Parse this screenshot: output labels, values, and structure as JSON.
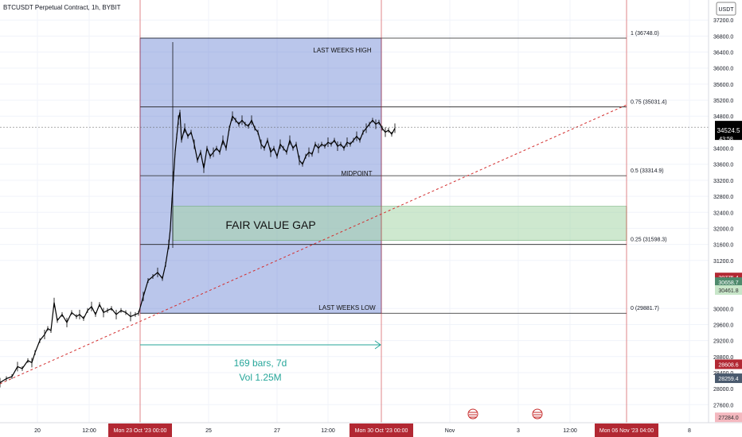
{
  "header": {
    "symbol_title": "BTCUSDT Perpetual Contract, 1h, BYBIT",
    "currency": "USDT"
  },
  "chart_data": {
    "type": "line",
    "title": "BTCUSDT Perpetual Contract, 1h, BYBIT",
    "y_axis": {
      "min": 27150,
      "max": 37700,
      "ticks": [
        37200,
        36800,
        36400,
        36000,
        35600,
        35200,
        34800,
        34000,
        33600,
        33200,
        32800,
        32400,
        32000,
        31600,
        31200,
        30000,
        29600,
        29200,
        28800,
        28400,
        28000,
        27600
      ],
      "tick_labels": [
        "37200.0",
        "36800.0",
        "36400.0",
        "36000.0",
        "35600.0",
        "35200.0",
        "34800.0",
        "34000.0",
        "33600.0",
        "33200.0",
        "32800.0",
        "32400.0",
        "32000.0",
        "31600.0",
        "31200.0",
        "30000.0",
        "29600.0",
        "29200.0",
        "28800.0",
        "28400.0",
        "28000.0",
        "27600.0"
      ]
    },
    "x_axis": {
      "ticks": [
        {
          "label": "20",
          "highlight": false
        },
        {
          "label": "12:00",
          "highlight": false
        },
        {
          "label": "Mon 23 Oct '23   00:00",
          "highlight": true
        },
        {
          "label": "25",
          "highlight": false
        },
        {
          "label": "27",
          "highlight": false
        },
        {
          "label": "12:00",
          "highlight": false
        },
        {
          "label": "Mon 30 Oct '23   00:00",
          "highlight": true
        },
        {
          "label": "Nov",
          "highlight": false
        },
        {
          "label": "3",
          "highlight": false
        },
        {
          "label": "12:00",
          "highlight": false
        },
        {
          "label": "Mon 06 Nov '23   04:00",
          "highlight": true
        },
        {
          "label": "8",
          "highlight": false
        }
      ]
    },
    "current_price": {
      "value": 34524.5,
      "label": "34524.5",
      "countdown": "43:58",
      "color": "#000000"
    },
    "price_badges": [
      {
        "value": 30775.4,
        "label": "30775.4",
        "color": "#b22833"
      },
      {
        "value": 30658.7,
        "label": "30658.7",
        "color": "#4e8a6c"
      },
      {
        "value": 30461.8,
        "label": "30461.8",
        "color": "#c8e6c9"
      },
      {
        "value": 28608.6,
        "label": "28608.6",
        "color": "#b22833"
      },
      {
        "value": 28259.4,
        "label": "28259.4",
        "color": "#4a5a6e"
      },
      {
        "value": 27284.0,
        "label": "27284.0",
        "color": "#f4b8bf"
      }
    ],
    "fib_levels": [
      {
        "ratio_label": "1",
        "value": 36748.0,
        "label": "(36748.0)"
      },
      {
        "ratio_label": "0.75",
        "value": 35031.4,
        "label": "(35031.4)"
      },
      {
        "ratio_label": "0.5",
        "value": 33314.9,
        "label": "(33314.9)"
      },
      {
        "ratio_label": "0.25",
        "value": 31598.3,
        "label": "(31598.3)"
      },
      {
        "ratio_label": "0",
        "value": 29881.7,
        "label": "(29881.7)"
      }
    ],
    "annotations": {
      "weekly_high": "LAST WEEKS HIGH",
      "midpoint": "MIDPOINT",
      "weekly_low": "LAST WEEKS LOW",
      "fvg": "FAIR VALUE GAP",
      "fvg_range": [
        31700,
        32550
      ],
      "measure_bars": "169 bars, 7d",
      "measure_vol": "Vol 1.25M"
    },
    "colors": {
      "box": "#5b78cf",
      "fvg": "#a5d6a7",
      "trendline": "#d32f2f",
      "measure": "#26a69a",
      "session": "#d32f2f",
      "candles": "#000000"
    },
    "series": [
      {
        "points": [
          [
            0,
            28150
          ],
          [
            8,
            28250
          ],
          [
            15,
            28300
          ],
          [
            22,
            28550
          ],
          [
            28,
            28500
          ],
          [
            35,
            28700
          ],
          [
            40,
            28650
          ],
          [
            44,
            28900
          ],
          [
            50,
            29200
          ],
          [
            56,
            29350
          ],
          [
            60,
            29500
          ],
          [
            64,
            29450
          ],
          [
            68,
            30150
          ],
          [
            72,
            29700
          ],
          [
            78,
            29850
          ],
          [
            84,
            29650
          ],
          [
            90,
            29900
          ],
          [
            96,
            29800
          ],
          [
            100,
            29850
          ],
          [
            105,
            29750
          ],
          [
            110,
            29950
          ],
          [
            115,
            30050
          ],
          [
            120,
            29850
          ],
          [
            125,
            30100
          ],
          [
            130,
            29900
          ],
          [
            135,
            29950
          ],
          [
            140,
            30000
          ],
          [
            146,
            29850
          ],
          [
            152,
            29950
          ],
          [
            158,
            29900
          ],
          [
            164,
            29800
          ],
          [
            170,
            29850
          ],
          [
            174,
            29880
          ],
          [
            180,
            30300
          ],
          [
            186,
            30700
          ],
          [
            192,
            30800
          ],
          [
            198,
            30900
          ],
          [
            204,
            30750
          ],
          [
            208,
            31100
          ],
          [
            212,
            31600
          ],
          [
            214,
            32000
          ],
          [
            216,
            32700
          ],
          [
            218,
            33300
          ],
          [
            220,
            33900
          ],
          [
            222,
            34300
          ],
          [
            224,
            34700
          ],
          [
            226,
            34900
          ],
          [
            228,
            34200
          ],
          [
            232,
            34500
          ],
          [
            236,
            34300
          ],
          [
            240,
            34400
          ],
          [
            244,
            34100
          ],
          [
            248,
            33700
          ],
          [
            252,
            33900
          ],
          [
            256,
            33500
          ],
          [
            260,
            34000
          ],
          [
            264,
            33800
          ],
          [
            268,
            33900
          ],
          [
            272,
            34000
          ],
          [
            276,
            33900
          ],
          [
            280,
            34200
          ],
          [
            284,
            34000
          ],
          [
            288,
            34500
          ],
          [
            292,
            34800
          ],
          [
            296,
            34700
          ],
          [
            300,
            34600
          ],
          [
            304,
            34700
          ],
          [
            308,
            34600
          ],
          [
            312,
            34550
          ],
          [
            316,
            34700
          ],
          [
            320,
            34500
          ],
          [
            324,
            34400
          ],
          [
            328,
            34100
          ],
          [
            332,
            34000
          ],
          [
            336,
            34200
          ],
          [
            340,
            33900
          ],
          [
            344,
            34000
          ],
          [
            348,
            33800
          ],
          [
            352,
            34100
          ],
          [
            356,
            34000
          ],
          [
            360,
            33900
          ],
          [
            364,
            34200
          ],
          [
            368,
            34000
          ],
          [
            372,
            34100
          ],
          [
            376,
            33700
          ],
          [
            380,
            33600
          ],
          [
            384,
            33800
          ],
          [
            388,
            33900
          ],
          [
            392,
            33850
          ],
          [
            396,
            34100
          ],
          [
            400,
            34000
          ],
          [
            404,
            34100
          ],
          [
            408,
            34050
          ],
          [
            412,
            34150
          ],
          [
            416,
            34100
          ],
          [
            420,
            34200
          ],
          [
            424,
            34050
          ],
          [
            428,
            34100
          ],
          [
            432,
            34000
          ],
          [
            436,
            34150
          ],
          [
            440,
            34100
          ],
          [
            444,
            34200
          ],
          [
            448,
            34300
          ],
          [
            452,
            34200
          ],
          [
            456,
            34400
          ],
          [
            460,
            34500
          ],
          [
            464,
            34600
          ],
          [
            468,
            34700
          ],
          [
            472,
            34600
          ],
          [
            476,
            34650
          ],
          [
            480,
            34500
          ],
          [
            484,
            34400
          ],
          [
            488,
            34450
          ],
          [
            492,
            34350
          ],
          [
            496,
            34500
          ]
        ]
      }
    ]
  }
}
